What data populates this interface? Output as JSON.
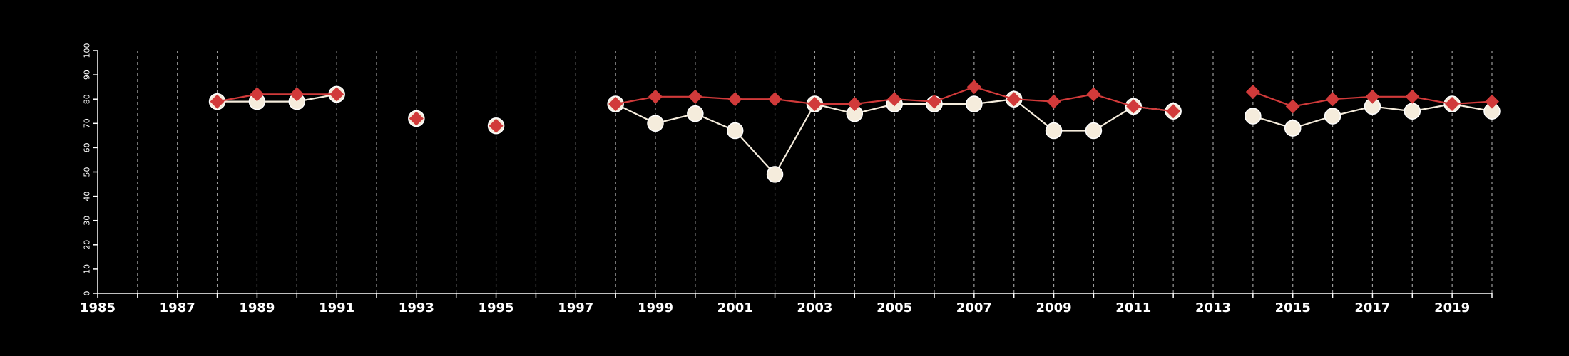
{
  "chart_data": {
    "type": "line",
    "xlim": [
      1985,
      2020
    ],
    "ylim": [
      0,
      100
    ],
    "x_ticks": [
      1985,
      1987,
      1989,
      1991,
      1993,
      1995,
      1997,
      1999,
      2001,
      2003,
      2005,
      2007,
      2009,
      2011,
      2013,
      2015,
      2017,
      2019
    ],
    "y_ticks": [
      0,
      10,
      20,
      30,
      40,
      50,
      60,
      70,
      80,
      90,
      100
    ],
    "vertical_grid": "dashed, every year",
    "background": "#000000",
    "x": [
      1985,
      1986,
      1987,
      1988,
      1989,
      1990,
      1991,
      1992,
      1993,
      1994,
      1995,
      1996,
      1997,
      1998,
      1999,
      2000,
      2001,
      2002,
      2003,
      2004,
      2005,
      2006,
      2007,
      2008,
      2009,
      2010,
      2011,
      2012,
      2013,
      2014,
      2015,
      2016,
      2017,
      2018,
      2019,
      2020
    ],
    "series": [
      {
        "marker": "circle",
        "color": "#f5ecdc",
        "values": [
          null,
          null,
          null,
          79,
          79,
          79,
          82,
          null,
          72,
          null,
          69,
          null,
          null,
          78,
          70,
          74,
          67,
          49,
          78,
          74,
          78,
          78,
          78,
          80,
          67,
          67,
          77,
          75,
          null,
          73,
          68,
          73,
          77,
          75,
          78,
          75
        ]
      },
      {
        "marker": "diamond",
        "color": "#d13a3a",
        "values": [
          null,
          null,
          null,
          79,
          82,
          82,
          82,
          null,
          72,
          null,
          69,
          null,
          null,
          78,
          81,
          81,
          80,
          80,
          78,
          78,
          80,
          79,
          85,
          80,
          79,
          82,
          77,
          75,
          null,
          83,
          77,
          80,
          81,
          81,
          78,
          79
        ]
      }
    ]
  }
}
